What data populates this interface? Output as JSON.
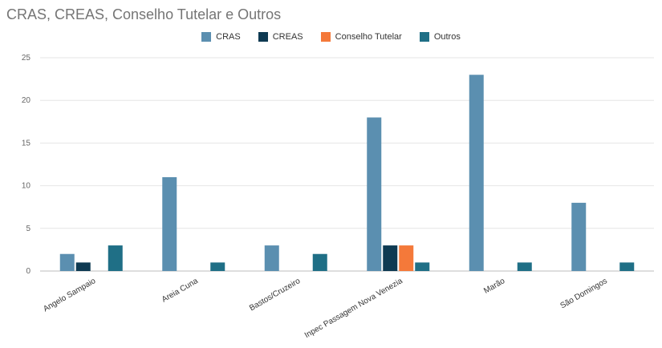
{
  "chart_data": {
    "type": "bar",
    "title": "CRAS, CREAS, Conselho Tutelar e Outros",
    "categories": [
      "Angelo Sampaio",
      "Areia Cuna",
      "Bastos/Cruzeiro",
      "Inpec Passagem Nova Venezia",
      "Marão",
      "São Domingos"
    ],
    "series": [
      {
        "name": "CRAS",
        "color": "#5b8fb0",
        "values": [
          2,
          11,
          3,
          18,
          23,
          8
        ]
      },
      {
        "name": "CREAS",
        "color": "#0e3a52",
        "values": [
          1,
          0,
          0,
          3,
          0,
          0
        ]
      },
      {
        "name": "Conselho Tutelar",
        "color": "#f4793a",
        "values": [
          0,
          0,
          0,
          3,
          0,
          0
        ]
      },
      {
        "name": "Outros",
        "color": "#1f6f86",
        "values": [
          3,
          1,
          2,
          1,
          1,
          1
        ]
      }
    ],
    "ylim": [
      0,
      25
    ],
    "yticks": [
      0,
      5,
      10,
      15,
      20,
      25
    ],
    "grid": true,
    "legend_position": "top"
  }
}
